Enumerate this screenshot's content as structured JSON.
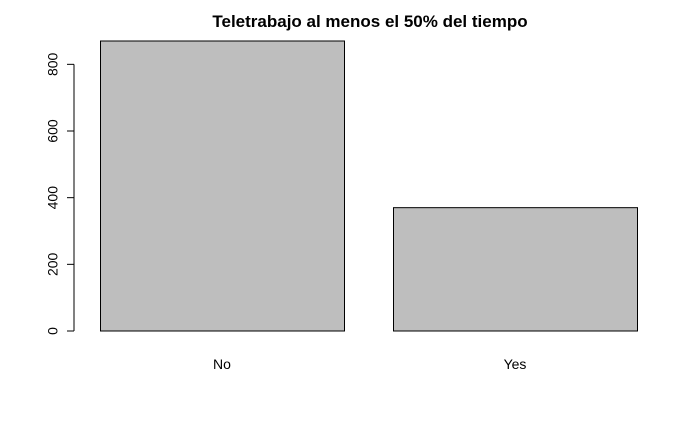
{
  "chart_data": {
    "type": "bar",
    "title": "Teletrabajo al menos el 50% del tiempo",
    "xlabel": "",
    "ylabel": "",
    "categories": [
      "No",
      "Yes"
    ],
    "values": [
      870,
      370
    ],
    "ylim": [
      0,
      870
    ],
    "y_ticks": [
      0,
      200,
      400,
      600,
      800
    ],
    "y_tick_labels": [
      "0",
      "200",
      "400",
      "600",
      "800"
    ],
    "bar_color": "#bebebe",
    "border_color": "#000000",
    "grid": false,
    "legend": "none"
  }
}
